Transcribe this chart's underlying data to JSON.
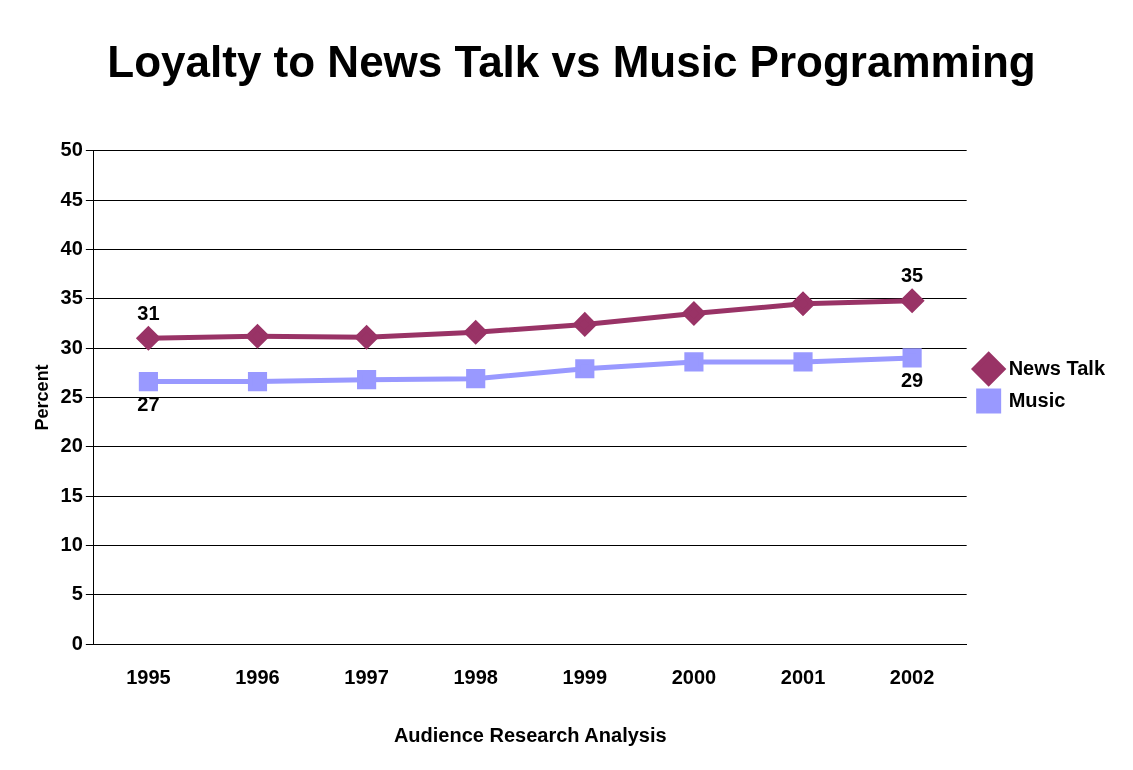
{
  "chart_data": {
    "type": "line",
    "title": "Loyalty to News Talk vs Music Programming",
    "xlabel": "Audience Research Analysis",
    "ylabel": "Percent",
    "categories": [
      "1995",
      "1996",
      "1997",
      "1998",
      "1999",
      "2000",
      "2001",
      "2002"
    ],
    "series": [
      {
        "name": "News Talk",
        "color": "#993366",
        "marker": "diamond",
        "values": [
          31,
          31.2,
          31.1,
          31.6,
          32.4,
          33.5,
          34.5,
          34.8
        ],
        "value_labels": [
          "31",
          null,
          null,
          null,
          null,
          null,
          null,
          "35"
        ]
      },
      {
        "name": "Music",
        "color": "#9999ff",
        "marker": "square",
        "values": [
          26.6,
          26.6,
          26.8,
          26.9,
          27.9,
          28.6,
          28.6,
          29.0
        ],
        "value_labels": [
          "27",
          null,
          null,
          null,
          null,
          null,
          null,
          "29"
        ]
      }
    ],
    "ylim": [
      0,
      50
    ],
    "yticks": [
      0,
      5,
      10,
      15,
      20,
      25,
      30,
      35,
      40,
      45,
      50
    ],
    "grid": "y",
    "legend": "right"
  }
}
